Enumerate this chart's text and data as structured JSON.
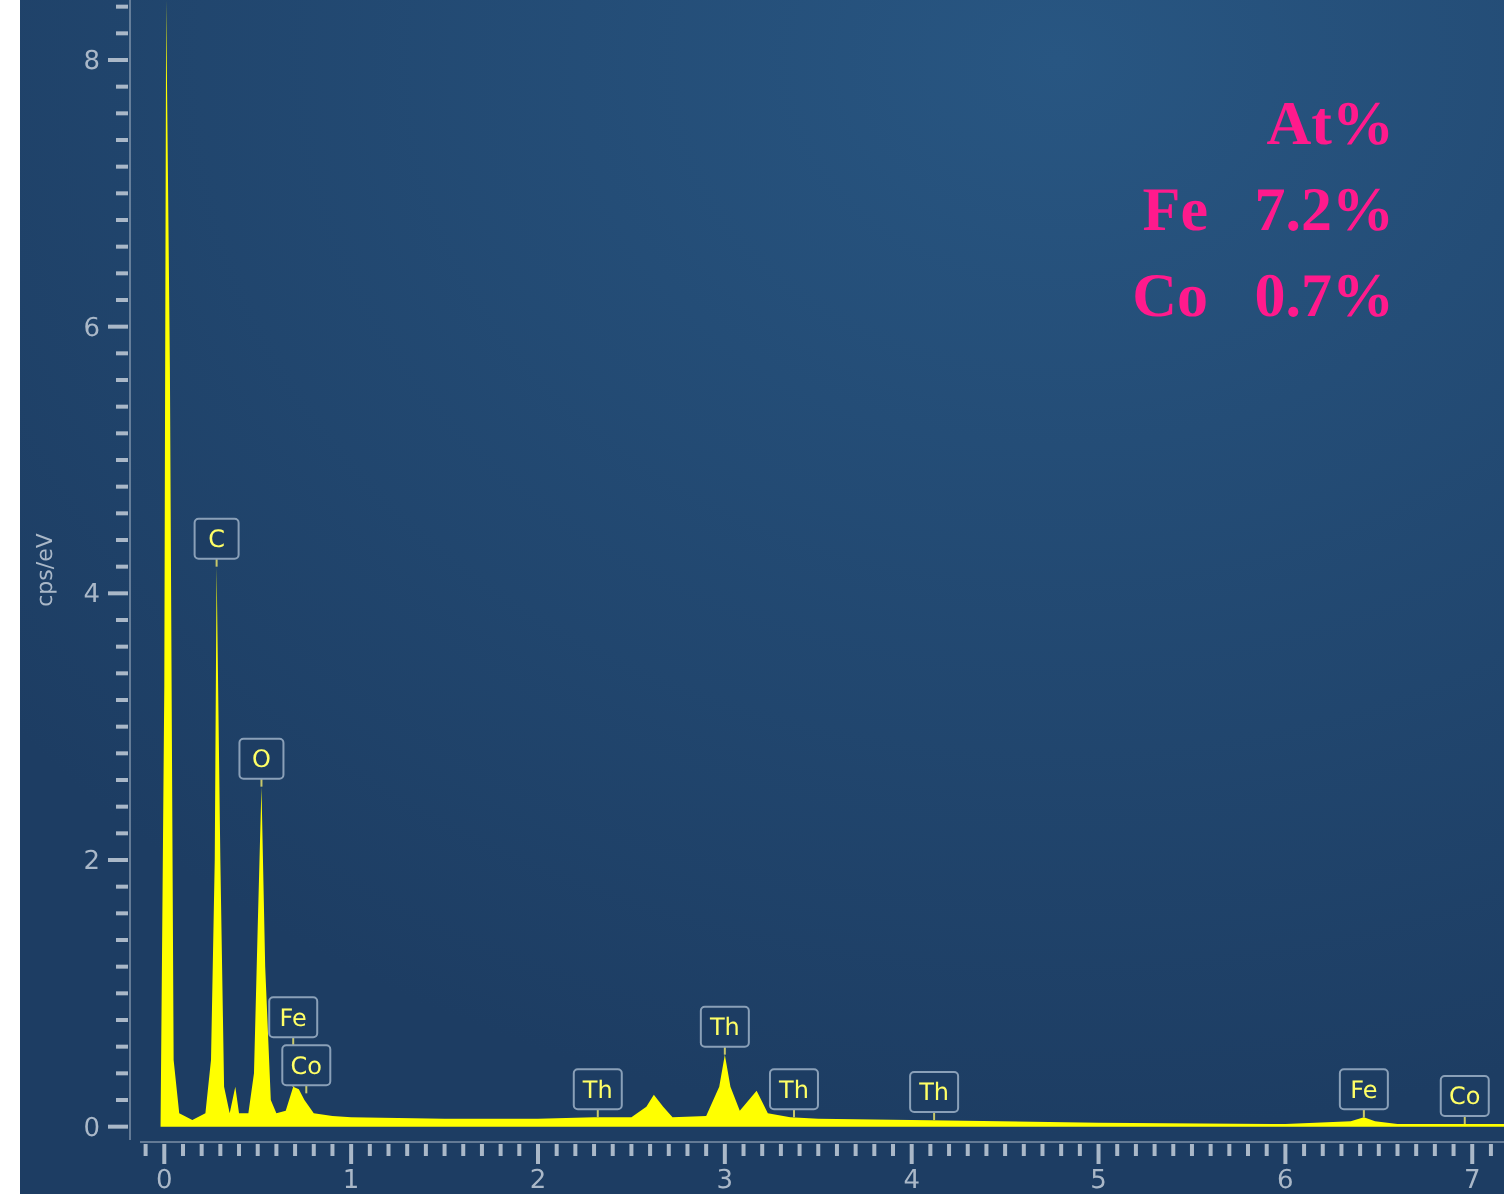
{
  "chart_data": {
    "type": "area",
    "ylabel": "cps/eV",
    "xlim": [
      -0.13,
      7.17
    ],
    "ylim": [
      -0.1,
      8.45
    ],
    "xticks": [
      {
        "value": -0.1,
        "label": null
      },
      0,
      {
        "value": 0.1,
        "label": null
      },
      {
        "value": 0.2,
        "label": null
      },
      {
        "value": 0.3,
        "label": null
      },
      {
        "value": 0.4,
        "label": null
      },
      {
        "value": 0.5,
        "label": null
      },
      {
        "value": 0.6,
        "label": null
      },
      {
        "value": 0.7,
        "label": null
      },
      {
        "value": 0.8,
        "label": null
      },
      {
        "value": 0.9,
        "label": null
      },
      1,
      {
        "value": 1.1,
        "label": null
      },
      {
        "value": 1.2,
        "label": null
      },
      {
        "value": 1.3,
        "label": null
      },
      {
        "value": 1.4,
        "label": null
      },
      {
        "value": 1.5,
        "label": null
      },
      {
        "value": 1.6,
        "label": null
      },
      {
        "value": 1.7,
        "label": null
      },
      {
        "value": 1.8,
        "label": null
      },
      {
        "value": 1.9,
        "label": null
      },
      2,
      {
        "value": 2.1,
        "label": null
      },
      {
        "value": 2.2,
        "label": null
      },
      {
        "value": 2.3,
        "label": null
      },
      {
        "value": 2.4,
        "label": null
      },
      {
        "value": 2.5,
        "label": null
      },
      {
        "value": 2.6,
        "label": null
      },
      {
        "value": 2.7,
        "label": null
      },
      {
        "value": 2.8,
        "label": null
      },
      {
        "value": 2.9,
        "label": null
      },
      3,
      {
        "value": 3.1,
        "label": null
      },
      {
        "value": 3.2,
        "label": null
      },
      {
        "value": 3.3,
        "label": null
      },
      {
        "value": 3.4,
        "label": null
      },
      {
        "value": 3.5,
        "label": null
      },
      {
        "value": 3.6,
        "label": null
      },
      {
        "value": 3.7,
        "label": null
      },
      {
        "value": 3.8,
        "label": null
      },
      {
        "value": 3.9,
        "label": null
      },
      4,
      {
        "value": 4.1,
        "label": null
      },
      {
        "value": 4.2,
        "label": null
      },
      {
        "value": 4.3,
        "label": null
      },
      {
        "value": 4.4,
        "label": null
      },
      {
        "value": 4.5,
        "label": null
      },
      {
        "value": 4.6,
        "label": null
      },
      {
        "value": 4.7,
        "label": null
      },
      {
        "value": 4.8,
        "label": null
      },
      {
        "value": 4.9,
        "label": null
      },
      5,
      {
        "value": 5.1,
        "label": null
      },
      {
        "value": 5.2,
        "label": null
      },
      {
        "value": 5.3,
        "label": null
      },
      {
        "value": 5.4,
        "label": null
      },
      {
        "value": 5.5,
        "label": null
      },
      {
        "value": 5.6,
        "label": null
      },
      {
        "value": 5.7,
        "label": null
      },
      {
        "value": 5.8,
        "label": null
      },
      {
        "value": 5.9,
        "label": null
      },
      6,
      {
        "value": 6.1,
        "label": null
      },
      {
        "value": 6.2,
        "label": null
      },
      {
        "value": 6.3,
        "label": null
      },
      {
        "value": 6.4,
        "label": null
      },
      {
        "value": 6.5,
        "label": null
      },
      {
        "value": 6.6,
        "label": null
      },
      {
        "value": 6.7,
        "label": null
      },
      {
        "value": 6.8,
        "label": null
      },
      {
        "value": 6.9,
        "label": null
      },
      7,
      {
        "value": 7.1,
        "label": null
      }
    ],
    "yticks": [
      0,
      {
        "value": 0.2,
        "label": null
      },
      {
        "value": 0.4,
        "label": null
      },
      {
        "value": 0.6,
        "label": null
      },
      {
        "value": 0.8,
        "label": null
      },
      {
        "value": 1,
        "label": null
      },
      {
        "value": 1.2,
        "label": null
      },
      {
        "value": 1.4,
        "label": null
      },
      {
        "value": 1.6,
        "label": null
      },
      {
        "value": 1.8,
        "label": null
      },
      2,
      {
        "value": 2.2,
        "label": null
      },
      {
        "value": 2.4,
        "label": null
      },
      {
        "value": 2.6,
        "label": null
      },
      {
        "value": 2.8,
        "label": null
      },
      {
        "value": 3,
        "label": null
      },
      {
        "value": 3.2,
        "label": null
      },
      {
        "value": 3.4,
        "label": null
      },
      {
        "value": 3.6,
        "label": null
      },
      {
        "value": 3.8,
        "label": null
      },
      4,
      {
        "value": 4.2,
        "label": null
      },
      {
        "value": 4.4,
        "label": null
      },
      {
        "value": 4.6,
        "label": null
      },
      {
        "value": 4.8,
        "label": null
      },
      {
        "value": 5,
        "label": null
      },
      {
        "value": 5.2,
        "label": null
      },
      {
        "value": 5.4,
        "label": null
      },
      {
        "value": 5.6,
        "label": null
      },
      {
        "value": 5.8,
        "label": null
      },
      6,
      {
        "value": 6.2,
        "label": null
      },
      {
        "value": 6.4,
        "label": null
      },
      {
        "value": 6.6,
        "label": null
      },
      {
        "value": 6.8,
        "label": null
      },
      {
        "value": 7,
        "label": null
      },
      {
        "value": 7.2,
        "label": null
      },
      {
        "value": 7.4,
        "label": null
      },
      {
        "value": 7.6,
        "label": null
      },
      {
        "value": 7.8,
        "label": null
      },
      8,
      {
        "value": 8.2,
        "label": null
      },
      {
        "value": 8.4,
        "label": null
      }
    ],
    "series": [
      {
        "color": "#ffff00",
        "x": [
          -0.02,
          0.0,
          0.01,
          0.03,
          0.05,
          0.08,
          0.15,
          0.22,
          0.25,
          0.27,
          0.28,
          0.3,
          0.32,
          0.35,
          0.38,
          0.4,
          0.45,
          0.48,
          0.5,
          0.52,
          0.54,
          0.57,
          0.6,
          0.65,
          0.69,
          0.72,
          0.75,
          0.8,
          0.9,
          1.0,
          1.5,
          2.0,
          2.3,
          2.5,
          2.58,
          2.62,
          2.67,
          2.72,
          2.9,
          2.97,
          3.0,
          3.03,
          3.08,
          3.17,
          3.23,
          3.35,
          3.5,
          4.0,
          5.0,
          6.0,
          6.35,
          6.42,
          6.48,
          6.6,
          7.17
        ],
        "values": [
          0,
          3.3,
          8.45,
          5.7,
          0.5,
          0.1,
          0.05,
          0.1,
          0.5,
          2.0,
          4.2,
          2.0,
          0.3,
          0.1,
          0.3,
          0.1,
          0.1,
          0.4,
          1.5,
          2.55,
          1.2,
          0.2,
          0.1,
          0.12,
          0.3,
          0.28,
          0.2,
          0.1,
          0.08,
          0.07,
          0.06,
          0.06,
          0.07,
          0.07,
          0.15,
          0.24,
          0.15,
          0.07,
          0.08,
          0.3,
          0.54,
          0.3,
          0.12,
          0.27,
          0.1,
          0.07,
          0.06,
          0.05,
          0.03,
          0.02,
          0.04,
          0.07,
          0.04,
          0.02,
          0.02
        ]
      }
    ],
    "annotations": [
      {
        "text": "C",
        "x": 0.28,
        "y": 4.2
      },
      {
        "text": "O",
        "x": 0.52,
        "y": 2.55
      },
      {
        "text": "Fe",
        "x": 0.69,
        "y": 0.3
      },
      {
        "text": "Co",
        "x": 0.76,
        "y": 0.25
      },
      {
        "text": "Th",
        "x": 2.32,
        "y": 0.07
      },
      {
        "text": "Th",
        "x": 3.0,
        "y": 0.54
      },
      {
        "text": "Th",
        "x": 3.37,
        "y": 0.07
      },
      {
        "text": "Th",
        "x": 4.12,
        "y": 0.05
      },
      {
        "text": "Fe",
        "x": 6.42,
        "y": 0.07
      },
      {
        "text": "Co",
        "x": 6.96,
        "y": 0.02
      },
      "At%",
      "Fe   7.2%",
      "Co   0.7%"
    ]
  }
}
